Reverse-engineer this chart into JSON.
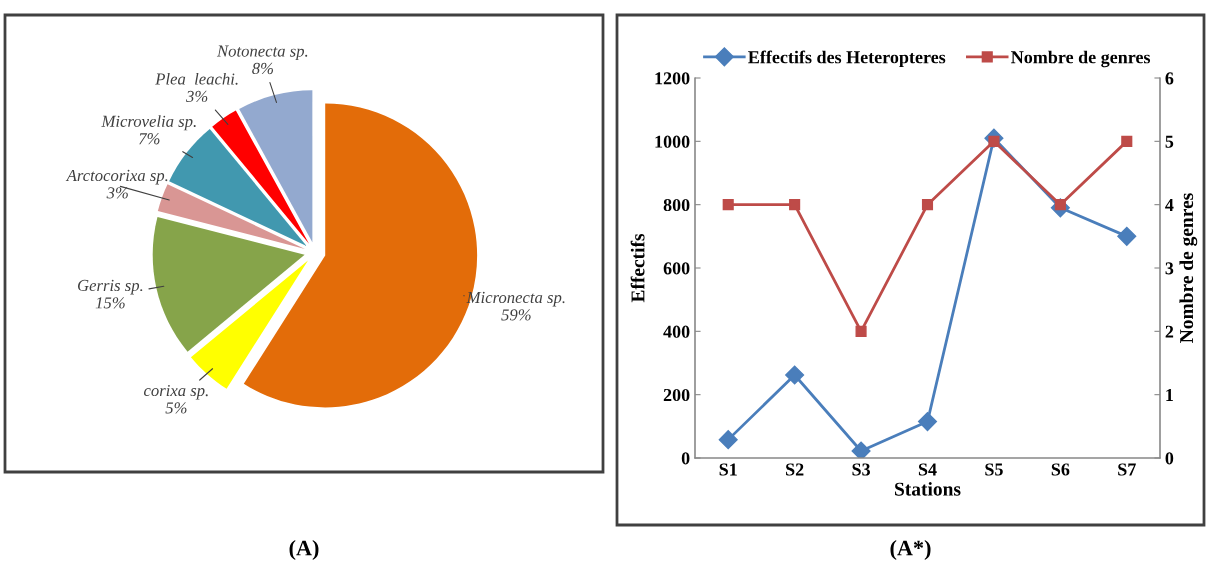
{
  "chart_data": [
    {
      "type": "pie",
      "title": "(A)",
      "categories": [
        "Micronecta sp.",
        "corixa sp.",
        "Gerris sp.",
        "Arctocorixa sp.",
        "Microvelia sp.",
        "Plea  leachi.",
        "Notonecta sp."
      ],
      "values": [
        59,
        5,
        15,
        3,
        7,
        3,
        8
      ],
      "colors": [
        "#e36c09",
        "#ffff00",
        "#86a44a",
        "#d99694",
        "#4198af",
        "#ff0000",
        "#93a9cf"
      ],
      "value_labels": [
        "59%",
        "5%",
        "15%",
        "3%",
        "7%",
        "3%",
        "8%"
      ]
    },
    {
      "type": "line",
      "title": "(A*)",
      "xlabel": "Stations",
      "ylabel": "Effectifs",
      "y2label": "Nombre de genres",
      "categories": [
        "S1",
        "S2",
        "S3",
        "S4",
        "S5",
        "S6",
        "S7"
      ],
      "ylim": [
        0,
        1200
      ],
      "yticks": [
        0,
        200,
        400,
        600,
        800,
        1000,
        1200
      ],
      "y2lim": [
        0,
        6
      ],
      "y2ticks": [
        0,
        1,
        2,
        3,
        4,
        5,
        6
      ],
      "legend": "top",
      "grid": false,
      "series": [
        {
          "name": "Effectifs des Heteropteres",
          "color": "#4a7ebb",
          "marker": "diamond",
          "values": [
            58,
            262,
            22,
            115,
            1010,
            790,
            700
          ]
        },
        {
          "name": "Nombre de genres",
          "color": "#be4b48",
          "marker": "square",
          "axis": "y2",
          "values": [
            4,
            4,
            2,
            4,
            5,
            4,
            5
          ]
        }
      ]
    }
  ]
}
